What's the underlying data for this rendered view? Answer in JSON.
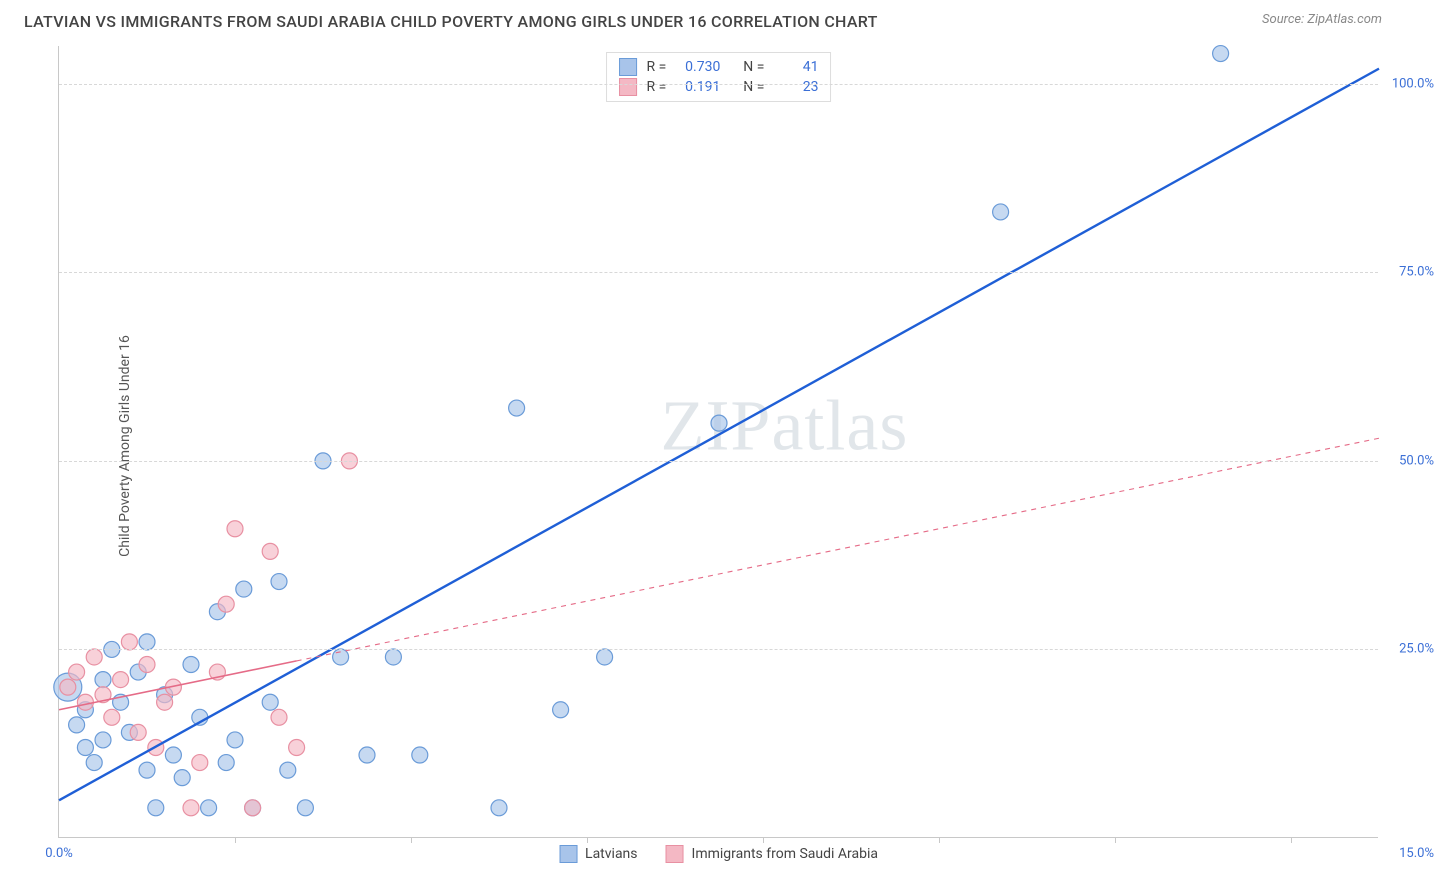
{
  "header": {
    "title": "LATVIAN VS IMMIGRANTS FROM SAUDI ARABIA CHILD POVERTY AMONG GIRLS UNDER 16 CORRELATION CHART",
    "source_label": "Source: ZipAtlas.com"
  },
  "chart": {
    "type": "scatter",
    "y_axis_label": "Child Poverty Among Girls Under 16",
    "xlim": [
      0,
      15
    ],
    "ylim": [
      0,
      105
    ],
    "x_ticks": [
      0,
      5,
      10,
      15
    ],
    "x_tick_labels": [
      "0.0%",
      "",
      "",
      "15.0%"
    ],
    "y_ticks": [
      25,
      50,
      75,
      100
    ],
    "y_tick_labels": [
      "25.0%",
      "50.0%",
      "75.0%",
      "100.0%"
    ],
    "grid_color": "#d8d8d8",
    "background_color": "#ffffff",
    "axis_color": "#c8c8c8",
    "tick_label_color": "#3b6fd6",
    "label_fontsize": 14,
    "tick_fontsize": 13,
    "watermark": "ZIPatlas",
    "series": [
      {
        "name": "Latvians",
        "marker_fill": "#a8c4ea",
        "marker_stroke": "#6a9bd8",
        "marker_opacity": 0.65,
        "line_color": "#1f5fd6",
        "line_width": 2.4,
        "line_dash": "none",
        "r_value": "0.730",
        "n_value": "41",
        "trend": {
          "x1": 0,
          "y1": 5,
          "x2": 15,
          "y2": 102
        },
        "solid_trend_end_x": 15,
        "points": [
          {
            "x": 0.1,
            "y": 20,
            "r": 14
          },
          {
            "x": 0.2,
            "y": 15,
            "r": 8
          },
          {
            "x": 0.3,
            "y": 12,
            "r": 8
          },
          {
            "x": 0.3,
            "y": 17,
            "r": 8
          },
          {
            "x": 0.4,
            "y": 10,
            "r": 8
          },
          {
            "x": 0.5,
            "y": 21,
            "r": 8
          },
          {
            "x": 0.5,
            "y": 13,
            "r": 8
          },
          {
            "x": 0.6,
            "y": 25,
            "r": 8
          },
          {
            "x": 0.7,
            "y": 18,
            "r": 8
          },
          {
            "x": 0.8,
            "y": 14,
            "r": 8
          },
          {
            "x": 0.9,
            "y": 22,
            "r": 8
          },
          {
            "x": 1.0,
            "y": 9,
            "r": 8
          },
          {
            "x": 1.0,
            "y": 26,
            "r": 8
          },
          {
            "x": 1.2,
            "y": 19,
            "r": 8
          },
          {
            "x": 1.3,
            "y": 11,
            "r": 8
          },
          {
            "x": 1.4,
            "y": 8,
            "r": 8
          },
          {
            "x": 1.5,
            "y": 23,
            "r": 8
          },
          {
            "x": 1.6,
            "y": 16,
            "r": 8
          },
          {
            "x": 1.8,
            "y": 30,
            "r": 8
          },
          {
            "x": 1.9,
            "y": 10,
            "r": 8
          },
          {
            "x": 2.0,
            "y": 13,
            "r": 8
          },
          {
            "x": 2.1,
            "y": 33,
            "r": 8
          },
          {
            "x": 2.2,
            "y": 4,
            "r": 8
          },
          {
            "x": 2.4,
            "y": 18,
            "r": 8
          },
          {
            "x": 2.5,
            "y": 34,
            "r": 8
          },
          {
            "x": 2.6,
            "y": 9,
            "r": 8
          },
          {
            "x": 2.8,
            "y": 4,
            "r": 8
          },
          {
            "x": 3.0,
            "y": 50,
            "r": 8
          },
          {
            "x": 3.2,
            "y": 24,
            "r": 8
          },
          {
            "x": 3.5,
            "y": 11,
            "r": 8
          },
          {
            "x": 3.8,
            "y": 24,
            "r": 8
          },
          {
            "x": 4.1,
            "y": 11,
            "r": 8
          },
          {
            "x": 5.0,
            "y": 4,
            "r": 8
          },
          {
            "x": 5.2,
            "y": 57,
            "r": 8
          },
          {
            "x": 5.7,
            "y": 17,
            "r": 8
          },
          {
            "x": 6.2,
            "y": 24,
            "r": 8
          },
          {
            "x": 7.5,
            "y": 55,
            "r": 8
          },
          {
            "x": 10.7,
            "y": 83,
            "r": 8
          },
          {
            "x": 13.2,
            "y": 104,
            "r": 8
          },
          {
            "x": 1.1,
            "y": 4,
            "r": 8
          },
          {
            "x": 1.7,
            "y": 4,
            "r": 8
          }
        ]
      },
      {
        "name": "Immigrants from Saudi Arabia",
        "marker_fill": "#f4b8c4",
        "marker_stroke": "#e890a2",
        "marker_opacity": 0.65,
        "line_color": "#e56b87",
        "line_width": 1.6,
        "line_dash": "5,5",
        "r_value": "0.191",
        "n_value": "23",
        "trend": {
          "x1": 0,
          "y1": 17,
          "x2": 15,
          "y2": 53
        },
        "solid_trend_end_x": 2.7,
        "points": [
          {
            "x": 0.1,
            "y": 20,
            "r": 8
          },
          {
            "x": 0.2,
            "y": 22,
            "r": 8
          },
          {
            "x": 0.3,
            "y": 18,
            "r": 8
          },
          {
            "x": 0.4,
            "y": 24,
            "r": 8
          },
          {
            "x": 0.5,
            "y": 19,
            "r": 8
          },
          {
            "x": 0.6,
            "y": 16,
            "r": 8
          },
          {
            "x": 0.7,
            "y": 21,
            "r": 8
          },
          {
            "x": 0.8,
            "y": 26,
            "r": 8
          },
          {
            "x": 0.9,
            "y": 14,
            "r": 8
          },
          {
            "x": 1.0,
            "y": 23,
            "r": 8
          },
          {
            "x": 1.2,
            "y": 18,
            "r": 8
          },
          {
            "x": 1.3,
            "y": 20,
            "r": 8
          },
          {
            "x": 1.5,
            "y": 4,
            "r": 8
          },
          {
            "x": 1.6,
            "y": 10,
            "r": 8
          },
          {
            "x": 1.8,
            "y": 22,
            "r": 8
          },
          {
            "x": 2.0,
            "y": 41,
            "r": 8
          },
          {
            "x": 2.2,
            "y": 4,
            "r": 8
          },
          {
            "x": 2.4,
            "y": 38,
            "r": 8
          },
          {
            "x": 2.5,
            "y": 16,
            "r": 8
          },
          {
            "x": 2.7,
            "y": 12,
            "r": 8
          },
          {
            "x": 3.3,
            "y": 50,
            "r": 8
          },
          {
            "x": 1.9,
            "y": 31,
            "r": 8
          },
          {
            "x": 1.1,
            "y": 12,
            "r": 8
          }
        ]
      }
    ],
    "legend_top": {
      "r_label": "R =",
      "n_label": "N ="
    },
    "legend_bottom": {
      "items": [
        "Latvians",
        "Immigrants from Saudi Arabia"
      ]
    }
  }
}
